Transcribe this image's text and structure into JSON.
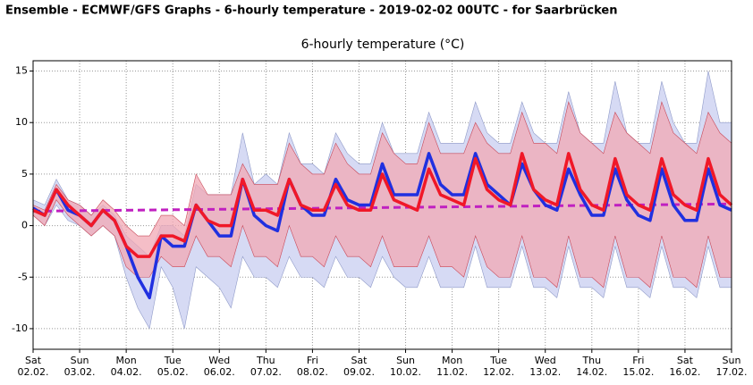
{
  "header": {
    "title": "Ensemble - ECMWF/GFS Graphs - 6-hourly temperature - 2019-02-02 00UTC - for Saarbrücken"
  },
  "chart_data": {
    "type": "line",
    "title": "6-hourly temperature (°C)",
    "x": [
      0,
      0.25,
      0.5,
      0.75,
      1,
      1.25,
      1.5,
      1.75,
      2,
      2.25,
      2.5,
      2.75,
      3,
      3.25,
      3.5,
      3.75,
      4,
      4.25,
      4.5,
      4.75,
      5,
      5.25,
      5.5,
      5.75,
      6,
      6.25,
      6.5,
      6.75,
      7,
      7.25,
      7.5,
      7.75,
      8,
      8.25,
      8.5,
      8.75,
      9,
      9.25,
      9.5,
      9.75,
      10,
      10.25,
      10.5,
      10.75,
      11,
      11.25,
      11.5,
      11.75,
      12,
      12.25,
      12.5,
      12.75,
      13,
      13.25,
      13.5,
      13.75,
      14,
      14.25,
      14.5,
      14.75,
      15
    ],
    "xlim": [
      0,
      15
    ],
    "xticks": [
      {
        "value": 0,
        "label": "02.02."
      },
      {
        "value": 1,
        "label": "03.02."
      },
      {
        "value": 2,
        "label": "04.02."
      },
      {
        "value": 3,
        "label": "05.02."
      },
      {
        "value": 4,
        "label": "06.02."
      },
      {
        "value": 5,
        "label": "07.02."
      },
      {
        "value": 6,
        "label": "08.02."
      },
      {
        "value": 7,
        "label": "09.02."
      },
      {
        "value": 8,
        "label": "10.02."
      },
      {
        "value": 9,
        "label": "11.02."
      },
      {
        "value": 10,
        "label": "12.02."
      },
      {
        "value": 11,
        "label": "13.02."
      },
      {
        "value": 12,
        "label": "14.02."
      },
      {
        "value": 13,
        "label": "15.02."
      },
      {
        "value": 14,
        "label": "16.02."
      },
      {
        "value": 15,
        "label": "17.02."
      }
    ],
    "xtick_weekdays": [
      "Sat",
      "Sun",
      "Mon",
      "Tue",
      "Wed",
      "Thu",
      "Fri",
      "Sat",
      "Sun",
      "Mon",
      "Tue",
      "Wed",
      "Thu",
      "Fri",
      "Sat",
      "Sun"
    ],
    "ylim": [
      -12,
      16
    ],
    "yticks": [
      -10,
      -5,
      0,
      5,
      10,
      15
    ],
    "grid": true,
    "bands": [
      {
        "color": "#d6daf4",
        "stroke": "#8f9ac8",
        "upper": [
          2.5,
          2,
          4.5,
          2.5,
          2,
          1,
          2,
          1,
          -1,
          -2,
          -3,
          0,
          0,
          -1,
          4,
          3,
          3,
          3,
          9,
          4,
          5,
          4,
          9,
          6,
          6,
          5,
          9,
          7,
          6,
          6,
          10,
          7,
          7,
          7,
          11,
          8,
          8,
          8,
          12,
          9,
          8,
          8,
          12,
          9,
          8,
          8,
          13,
          9,
          8,
          8,
          14,
          9,
          8,
          8,
          14,
          10,
          8,
          8,
          15,
          10,
          10
        ],
        "lower": [
          1,
          0,
          2,
          0.5,
          0,
          -1,
          0,
          -1,
          -5,
          -8,
          -10,
          -4,
          -6,
          -10,
          -4,
          -5,
          -6,
          -8,
          -3,
          -5,
          -5,
          -6,
          -3,
          -5,
          -5,
          -6,
          -3,
          -5,
          -5,
          -6,
          -3,
          -5,
          -6,
          -6,
          -3,
          -6,
          -6,
          -6,
          -2,
          -6,
          -6,
          -6,
          -2,
          -6,
          -6,
          -7,
          -2,
          -6,
          -6,
          -7,
          -2,
          -6,
          -6,
          -7,
          -2,
          -6,
          -6,
          -7,
          -2,
          -6,
          -6
        ]
      },
      {
        "color": "#f2a8b4",
        "stroke": "#c84858",
        "upper": [
          2,
          1.5,
          4,
          2.5,
          2,
          1,
          2.5,
          1.5,
          0,
          -1,
          -1,
          1,
          1,
          0,
          5,
          3,
          3,
          3,
          6,
          4,
          4,
          4,
          8,
          6,
          5,
          5,
          8,
          6,
          5,
          5,
          9,
          7,
          6,
          6,
          10,
          7,
          7,
          7,
          10,
          8,
          7,
          7,
          11,
          8,
          8,
          7,
          12,
          9,
          8,
          7,
          11,
          9,
          8,
          7,
          12,
          9,
          8,
          7,
          11,
          9,
          8
        ],
        "lower": [
          1,
          0,
          2.5,
          1,
          0,
          -1,
          0,
          -1,
          -4,
          -5,
          -5,
          -3,
          -4,
          -4,
          -1,
          -3,
          -3,
          -4,
          0,
          -3,
          -3,
          -4,
          0,
          -3,
          -3,
          -4,
          -1,
          -3,
          -3,
          -4,
          -1,
          -4,
          -4,
          -4,
          -1,
          -4,
          -4,
          -5,
          -1,
          -4,
          -5,
          -5,
          -1,
          -5,
          -5,
          -6,
          -1,
          -5,
          -5,
          -6,
          -1,
          -5,
          -5,
          -6,
          -1,
          -5,
          -5,
          -6,
          -1,
          -5,
          -5
        ]
      }
    ],
    "climate": {
      "color": "#c020c0",
      "x": [
        0,
        15
      ],
      "values": [
        1.4,
        2.1
      ]
    },
    "series": [
      {
        "color": "#2030e0",
        "values": [
          1.7,
          1,
          3.5,
          1.5,
          1,
          0,
          1.5,
          0.5,
          -2,
          -5,
          -7,
          -1,
          -2,
          -2,
          2,
          0.5,
          -1,
          -1,
          4.5,
          1,
          0,
          -0.5,
          4.5,
          2,
          1,
          1,
          4.5,
          2.5,
          2,
          2,
          6,
          3,
          3,
          3,
          7,
          4,
          3,
          3,
          7,
          4,
          3,
          2,
          6,
          3.5,
          2,
          1.5,
          5.5,
          3,
          1,
          1,
          5.5,
          2.5,
          1,
          0.5,
          5.5,
          2,
          0.5,
          0.5,
          5.5,
          2,
          1.5
        ]
      },
      {
        "color": "#f01828",
        "values": [
          1.5,
          1,
          3.5,
          2,
          1,
          0,
          1.5,
          0.5,
          -2,
          -3,
          -3,
          -1,
          -1,
          -1.5,
          2,
          0.5,
          0,
          0,
          4.5,
          1.5,
          1.5,
          1,
          4.5,
          2,
          1.5,
          1.5,
          4,
          2,
          1.5,
          1.5,
          5,
          2.5,
          2,
          1.5,
          5.5,
          3,
          2.5,
          2,
          6.5,
          3.5,
          2.5,
          2,
          7,
          3.5,
          2.5,
          2,
          7,
          3.5,
          2,
          1.5,
          6.5,
          3,
          2,
          1.5,
          6.5,
          3,
          2,
          1.5,
          6.5,
          3,
          2
        ]
      }
    ]
  }
}
